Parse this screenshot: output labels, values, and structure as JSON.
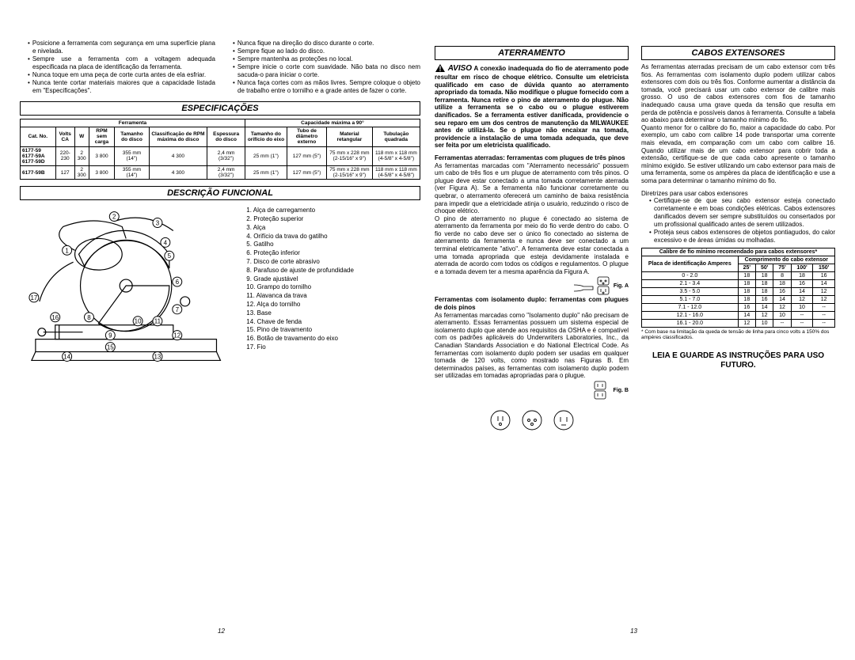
{
  "left_bullets_col1": [
    "Posicione a ferramenta com segurança em uma superfície plana e nivelada.",
    "Sempre use a ferramenta com a voltagem adequada especificada na placa de identificação da ferramenta.",
    "Nunca toque em uma peça de corte curta antes de ela esfriar.",
    "Nunca tente cortar materiais maiores que a capacidade listada em \"Especificações\"."
  ],
  "left_bullets_col2": [
    "Nunca fique na direção do disco durante o corte.",
    "Sempre fique ao lado do disco.",
    "Sempre mantenha as proteções no local.",
    "Sempre inicie o corte com suavidade. Não bata no disco nem sacuda-o para iniciar o corte.",
    "Nunca faça cortes com as mãos livres. Sempre coloque o objeto de trabalho entre o tornilho e a grade antes de fazer o corte."
  ],
  "sec_especificacoes": "ESPECIFICAÇÕES",
  "spec_headers": {
    "ferramenta": "Ferramenta",
    "capacidade": "Capacidade máxima a 90°",
    "cat": "Cat. No.",
    "volts": "Volts CA",
    "w": "W",
    "rpm": "RPM sem carga",
    "tamanho": "Tamanho do disco",
    "class": "Classificação de RPM máxima do disco",
    "espessura": "Espessura do disco",
    "tamanho_orif": "Tamanho do orifício do eixo",
    "tubo": "Tubo de diâmetro externo",
    "material_ret": "Material retangular",
    "tub_quad": "Tubulação quadrada"
  },
  "spec_rows": [
    {
      "cat": "6177-59 6177-59A 6177-59D",
      "volts": "220-230",
      "w": "2 300",
      "rpm": "3 800",
      "tam": "355 mm (14\")",
      "class": "4 300",
      "esp": "2,4 mm (3/32\")",
      "orif": "25 mm (1\")",
      "tubo": "127 mm (5\")",
      "ret": "75 mm x 228 mm (2-15/16\" x 9\")",
      "quad": "118 mm x 118 mm (4-5/8\" x 4-5/8\")"
    },
    {
      "cat": "6177-59B",
      "volts": "127",
      "w": "2 300",
      "rpm": "3 800",
      "tam": "355 mm (14\")",
      "class": "4 300",
      "esp": "2,4 mm (3/32\")",
      "orif": "25 mm (1\")",
      "tubo": "127 mm (5\")",
      "ret": "75 mm x 228 mm (2-15/16\" x 9\")",
      "quad": "118 mm x 118 mm (4-5/8\" x 4-5/8\")"
    }
  ],
  "sec_descricao": "DESCRIÇÃO FUNCIONAL",
  "func_items": [
    "Alça de carregamento",
    "Proteção superior",
    "Alça",
    "Orifício da trava do gatilho",
    "Gatilho",
    "Proteção inferior",
    "Disco de corte abrasivo",
    "Parafuso de ajuste de profundidade",
    "Grade ajustável",
    "Grampo do tornilho",
    "Alavanca da trava",
    "Alça do tornilho",
    "Base",
    "Chave de fenda",
    "Pino de travamento",
    "Botão de travamento do eixo",
    "Fio"
  ],
  "sec_aterramento": "ATERRAMENTO",
  "aviso_label": "AVISO",
  "aviso_text": "A conexão inadequada do fio de aterramento pode resultar em risco de choque elétrico. Consulte um eletricista qualificado em caso de dúvida quanto ao aterramento apropriado da tomada. Não modifique o plugue fornecido com a ferramenta. Nunca retire o pino de aterramento do plugue. Não utilize a ferramenta se o cabo ou o plugue estiverem danificados. Se a ferramenta estiver danificada, providencie o seu reparo em um dos centros de manutenção da MILWAUKEE antes de utilizá-la. Se o plugue não encaixar na tomada, providencie a instalação de uma tomada adequada, que deve ser feita por um eletricista qualificado.",
  "ferr_ater_title": "Ferramentas aterradas: ferramentas com plugues de três pinos",
  "ferr_ater_body1": "As ferramentas marcadas com \"Aterramento necessário\" possuem um cabo de três fios e um plugue de aterramento com três pinos. O plugue deve estar conectado a uma tomada corretamente aterrada (ver Figura A). Se a ferramenta não funcionar corretamente ou quebrar, o aterramento oferecerá um caminho de baixa resistência para impedir que a eletricidade atinja o usuário, reduzindo o risco de choque elétrico.",
  "ferr_ater_body2": "O pino de aterramento no plugue é conectado ao sistema de aterramento da ferramenta por meio do fio verde dentro do cabo. O fio verde no cabo deve ser o único fio conectado ao sistema de aterramento da ferramenta e nunca deve ser conectado a um terminal eletricamente \"ativo\". A ferramenta deve estar conectada a uma tomada apropriada que esteja devidamente instalada e aterrada de acordo com todos os códigos e regulamentos. O plugue e a tomada devem ter a mesma aparência da Figura A.",
  "fig_a": "Fig. A",
  "ferr_iso_title": "Ferramentas com isolamento duplo: ferramentas com plugues de dois pinos",
  "ferr_iso_body": "As ferramentas marcadas como \"Isolamento duplo\" não precisam de aterramento. Essas ferramentas possuem um sistema especial de isolamento duplo que atende aos requisitos da OSHA e é compatível com os padrões aplicáveis do Underwriters Laboratories, Inc., da Canadian Standards Association e do National Electrical Code. As ferramentas com isolamento duplo podem ser usadas em qualquer tomada de 120 volts, como mostrado nas Figuras B. Em determinados países, as ferramentas com isolamento duplo podem ser utilizadas em tomadas apropriadas para o plugue.",
  "fig_b": "Fig. B",
  "sec_cabos": "CABOS EXTENSORES",
  "cabos_body1": "As ferramentas aterradas precisam de um cabo extensor com três fios. As ferramentas com isolamento duplo podem utilizar cabos extensores com dois ou três fios. Conforme aumentar a distância da tomada, você precisará usar um cabo extensor de calibre mais grosso. O uso de cabos extensores com fios de tamanho inadequado causa uma grave queda da tensão que resulta em perda de potência e possíveis danos à ferramenta. Consulte a tabela ao abaixo para determinar o tamanho mínimo do fio.",
  "cabos_body2": "Quanto menor for o calibre do fio, maior a capacidade do cabo. Por exemplo, um cabo com calibre 14 pode transportar uma corrente mais elevada, em comparação com um cabo com calibre 16. Quando utilizar mais de um cabo extensor para cobrir toda a extensão, certifique-se de que cada cabo apresente o tamanho mínimo exigido. Se estiver utilizando um cabo extensor para mais de uma ferramenta, some os ampères da placa de identificação e use a soma para determinar o tamanho mínimo do fio.",
  "diretrizes_title": "Diretrizes para usar cabos extensores",
  "diretrizes": [
    "Certifique-se de que seu cabo extensor esteja conectado corretamente e em boas condições elétricas. Cabos extensores danificados devem ser sempre substituídos ou consertados por um profissional qualificado antes de serem utilizados.",
    "Proteja seus cabos extensores de objetos pontiagudos, do calor excessivo e de áreas úmidas ou molhadas."
  ],
  "ext_table_title1": "Calibre de fio mínimo recomendado para cabos extensores*",
  "ext_table_h1": "Placa de identificação Amperes",
  "ext_table_h2": "Comprimento do cabo extensor",
  "ext_cols": [
    "25'",
    "50'",
    "75'",
    "100'",
    "150'"
  ],
  "ext_rows": [
    {
      "a": "0 - 2.0",
      "v": [
        "18",
        "18",
        "8",
        "18",
        "16"
      ]
    },
    {
      "a": "2.1 - 3.4",
      "v": [
        "18",
        "18",
        "18",
        "16",
        "14"
      ]
    },
    {
      "a": "3.5 - 5.0",
      "v": [
        "18",
        "18",
        "16",
        "14",
        "12"
      ]
    },
    {
      "a": "5.1 - 7.0",
      "v": [
        "18",
        "16",
        "14",
        "12",
        "12"
      ]
    },
    {
      "a": "7.1 - 12.0",
      "v": [
        "16",
        "14",
        "12",
        "10",
        "--"
      ]
    },
    {
      "a": "12.1 - 16.0",
      "v": [
        "14",
        "12",
        "10",
        "--",
        "--"
      ]
    },
    {
      "a": "16.1 - 20.0",
      "v": [
        "12",
        "10",
        "--",
        "--",
        "--"
      ]
    }
  ],
  "ext_footnote": "* Com base na limitação da queda de tensão de linha para cinco volts a 150% dos ampères classificados.",
  "read_save": "LEIA E GUARDE AS INSTRUÇÕES PARA USO FUTURO.",
  "page12": "12",
  "page13": "13",
  "colors": {
    "text": "#000000",
    "bg": "#ffffff",
    "border": "#000000"
  }
}
